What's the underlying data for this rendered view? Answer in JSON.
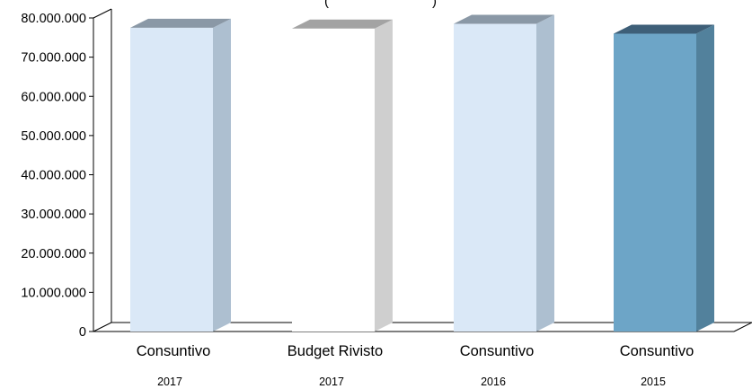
{
  "chart_data": {
    "type": "bar",
    "title_fragment": "(",
    "title_fragment_right": ")",
    "categories": [
      "Consuntivo",
      "Budget Rivisto",
      "Consuntivo",
      "Consuntivo"
    ],
    "years": [
      "2017",
      "2017",
      "2016",
      "2015"
    ],
    "values": [
      77500000,
      77300000,
      78500000,
      76000000
    ],
    "y_ticks": [
      "0",
      "10.000.000",
      "20.000.000",
      "30.000.000",
      "40.000.000",
      "50.000.000",
      "60.000.000",
      "70.000.000",
      "80.000.000"
    ],
    "ylim": [
      0,
      80000000
    ],
    "three_d": true,
    "grid": false,
    "colors": {
      "bars": [
        {
          "front": "#dae8f7",
          "side": "#adbfd0",
          "top": "#8a98a6"
        },
        {
          "front": "#ffffff",
          "side": "#cfcfcf",
          "top": "#a3a3a3"
        },
        {
          "front": "#dae8f7",
          "side": "#adbfd0",
          "top": "#8a98a6"
        },
        {
          "front": "#6da5c7",
          "side": "#52819c",
          "top": "#3e5f78"
        }
      ],
      "axis": "#000000"
    }
  }
}
